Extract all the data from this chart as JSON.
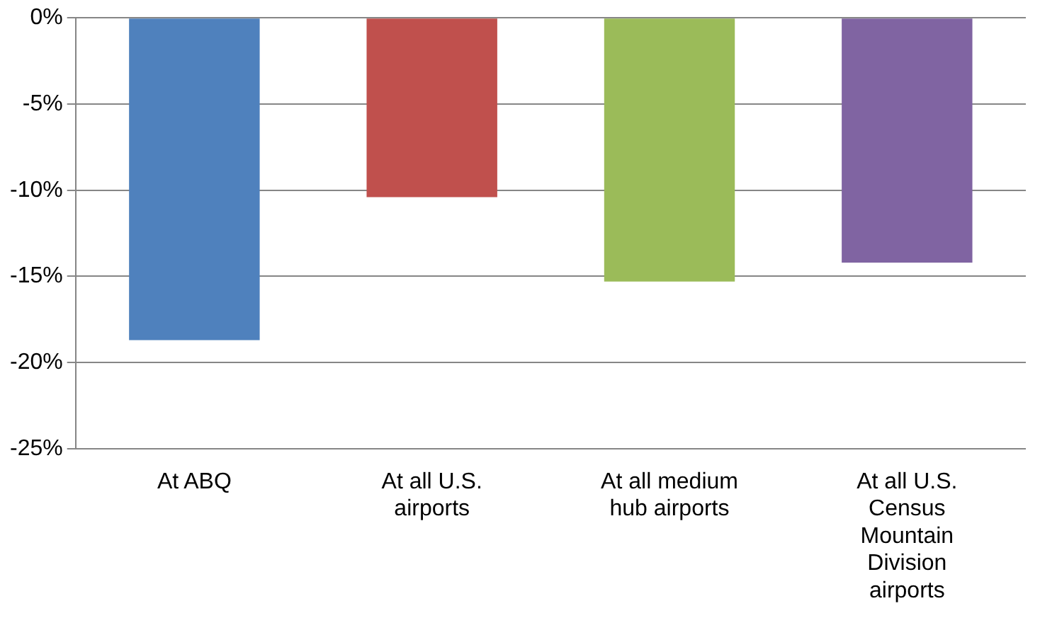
{
  "chart_data": {
    "type": "bar",
    "categories": [
      "At ABQ",
      "At all U.S. airports",
      "At all medium hub airports",
      "At all U.S. Census Mountain Division airports"
    ],
    "values": [
      -18.7,
      -10.4,
      -15.3,
      -14.2
    ],
    "colors": [
      "#4f81bd",
      "#c0504d",
      "#9bbb59",
      "#8064a2"
    ],
    "ylim": [
      -25,
      0
    ],
    "yticks": [
      {
        "value": 0,
        "label": "0%"
      },
      {
        "value": -5,
        "label": "-5%"
      },
      {
        "value": -10,
        "label": "-10%"
      },
      {
        "value": -15,
        "label": "-15%"
      },
      {
        "value": -20,
        "label": "-20%"
      },
      {
        "value": -25,
        "label": "-25%"
      }
    ],
    "grid": "y",
    "legend": false
  }
}
